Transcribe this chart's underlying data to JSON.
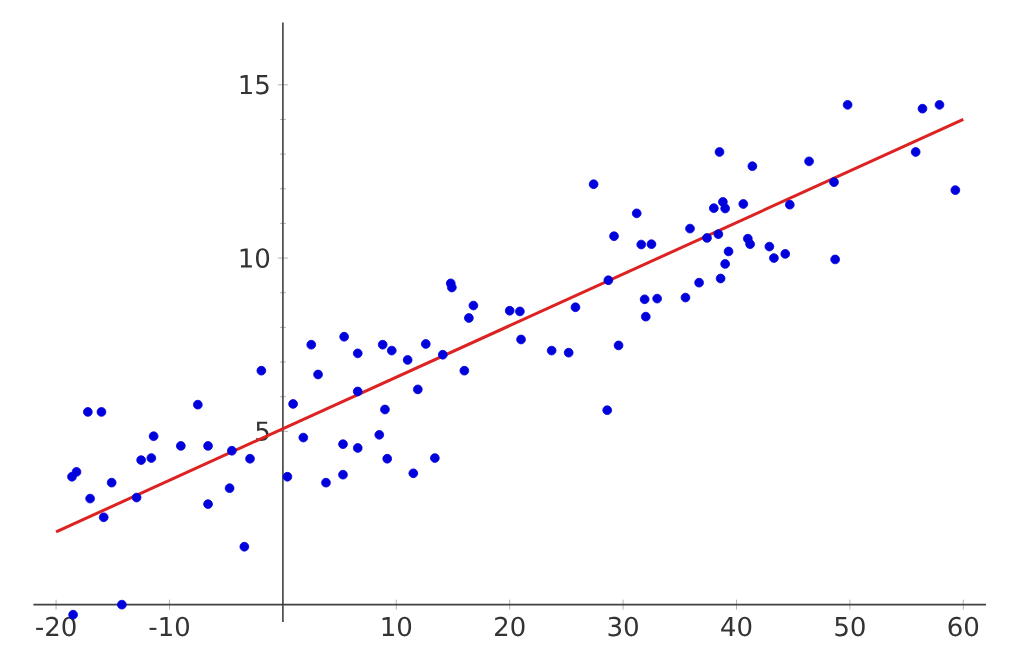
{
  "chart_data": {
    "type": "scatter",
    "xlim": [
      -22,
      62
    ],
    "ylim": [
      -0.5,
      16.8
    ],
    "xticks": [
      -20,
      -10,
      10,
      20,
      30,
      40,
      50,
      60
    ],
    "yticks": [
      5,
      10,
      15
    ],
    "series": [
      {
        "marker": "circle",
        "color": "#0000dd",
        "x": [
          -18.6,
          -18.2,
          -17.2,
          -16.0,
          -17.0,
          -15.8,
          -15.1,
          -18.5,
          -14.2,
          -12.9,
          -12.5,
          -11.6,
          -11.4,
          -9.0,
          -7.5,
          -6.6,
          -6.6,
          -4.7,
          -4.5,
          -3.4,
          -2.9,
          -1.9,
          0.4,
          0.9,
          1.8,
          2.5,
          3.1,
          3.8,
          5.3,
          5.3,
          5.4,
          6.6,
          6.6,
          6.6,
          8.5,
          8.8,
          9.0,
          9.2,
          9.6,
          11.0,
          11.5,
          11.9,
          12.6,
          13.4,
          14.1,
          14.8,
          14.9,
          16.0,
          16.4,
          16.8,
          20.0,
          20.9,
          21.0,
          23.7,
          25.2,
          25.8,
          28.6,
          28.7,
          29.6,
          27.4,
          29.2,
          31.2,
          31.6,
          32.5,
          31.9,
          33.0,
          32.0,
          35.5,
          35.9,
          36.7,
          37.4,
          38.4,
          38.5,
          38.0,
          38.8,
          39.0,
          38.6,
          39.0,
          39.3,
          40.6,
          41.0,
          41.2,
          41.4,
          42.9,
          43.3,
          44.3,
          44.7,
          46.4,
          48.6,
          48.7,
          55.8,
          59.3,
          49.8,
          56.4,
          57.9
        ],
        "values": [
          3.69,
          3.83,
          5.56,
          5.56,
          3.06,
          2.52,
          3.52,
          -0.29,
          0.0,
          3.09,
          4.17,
          4.23,
          4.86,
          4.58,
          5.77,
          4.58,
          2.9,
          3.36,
          4.44,
          1.67,
          4.21,
          6.75,
          3.69,
          5.79,
          4.82,
          7.5,
          6.64,
          3.52,
          3.75,
          4.63,
          7.73,
          7.25,
          4.52,
          6.15,
          4.9,
          7.5,
          5.63,
          4.21,
          7.33,
          7.06,
          3.79,
          6.21,
          7.52,
          4.23,
          7.21,
          9.27,
          9.15,
          6.75,
          8.27,
          8.63,
          8.48,
          8.46,
          7.65,
          7.33,
          7.27,
          8.58,
          5.61,
          9.36,
          7.48,
          12.13,
          10.63,
          11.29,
          10.39,
          10.4,
          8.81,
          8.83,
          8.31,
          8.86,
          10.85,
          9.29,
          10.58,
          10.69,
          13.06,
          11.44,
          11.62,
          11.43,
          9.41,
          9.83,
          10.19,
          11.56,
          10.56,
          10.4,
          12.65,
          10.33,
          10.0,
          10.12,
          11.54,
          12.79,
          12.19,
          9.96,
          13.06,
          11.96,
          14.42,
          14.31,
          14.42
        ]
      },
      {
        "type": "line",
        "marker": "none",
        "color": "#dd2222",
        "x": [
          -20,
          60
        ],
        "values": [
          2.1,
          14.0
        ]
      }
    ]
  }
}
